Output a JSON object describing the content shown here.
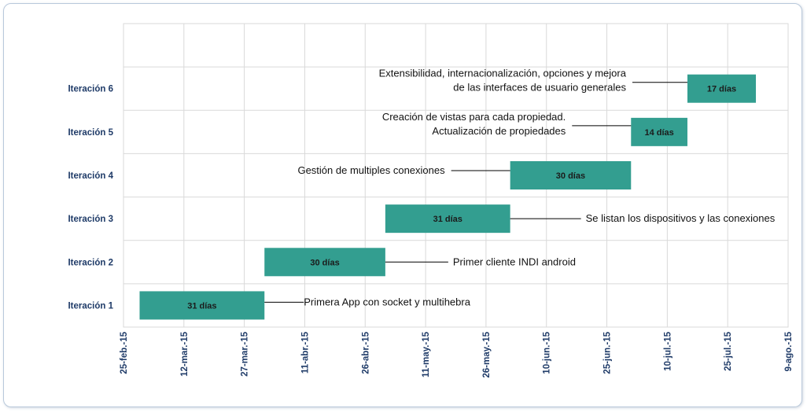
{
  "chart_data": {
    "type": "bar",
    "orientation": "horizontal-gantt",
    "title": "",
    "xlabel": "",
    "ylabel": "",
    "bar_color": "#339e90",
    "grid": true,
    "categories": [
      "Iteración 1",
      "Iteración 2",
      "Iteración 3",
      "Iteración 4",
      "Iteración 5",
      "Iteración 6"
    ],
    "x_ticks": [
      "25-feb.-15",
      "12-mar.-15",
      "27-mar.-15",
      "11-abr.-15",
      "26-abr.-15",
      "11-may.-15",
      "26-may.-15",
      "10-jun.-15",
      "25-jun.-15",
      "10-jul.-15",
      "25-jul.-15",
      "9-ago.-15"
    ],
    "xlim": [
      "2015-02-25",
      "2015-08-09"
    ],
    "tasks": [
      {
        "category": "Iteración 1",
        "start": "2015-03-01",
        "duration_days": 31,
        "label": "31 días",
        "annotation": [
          "Primera App con socket y multihebra"
        ]
      },
      {
        "category": "Iteración 2",
        "start": "2015-04-01",
        "duration_days": 30,
        "label": "30 días",
        "annotation": [
          "Primer cliente INDI android"
        ]
      },
      {
        "category": "Iteración 3",
        "start": "2015-05-01",
        "duration_days": 31,
        "label": "31 días",
        "annotation": [
          "Se listan los dispositivos y las conexiones"
        ]
      },
      {
        "category": "Iteración 4",
        "start": "2015-06-01",
        "duration_days": 30,
        "label": "30 días",
        "annotation": [
          "Gestión de multiples conexiones"
        ]
      },
      {
        "category": "Iteración 5",
        "start": "2015-07-01",
        "duration_days": 14,
        "label": "14 días",
        "annotation": [
          "Creación de vistas para cada propiedad.",
          "Actualización de propiedades"
        ]
      },
      {
        "category": "Iteración 6",
        "start": "2015-07-15",
        "duration_days": 17,
        "label": "17 días",
        "annotation": [
          "Extensibilidad, internacionalización, opciones y mejora",
          "de las interfaces de usuario generales"
        ]
      }
    ]
  }
}
